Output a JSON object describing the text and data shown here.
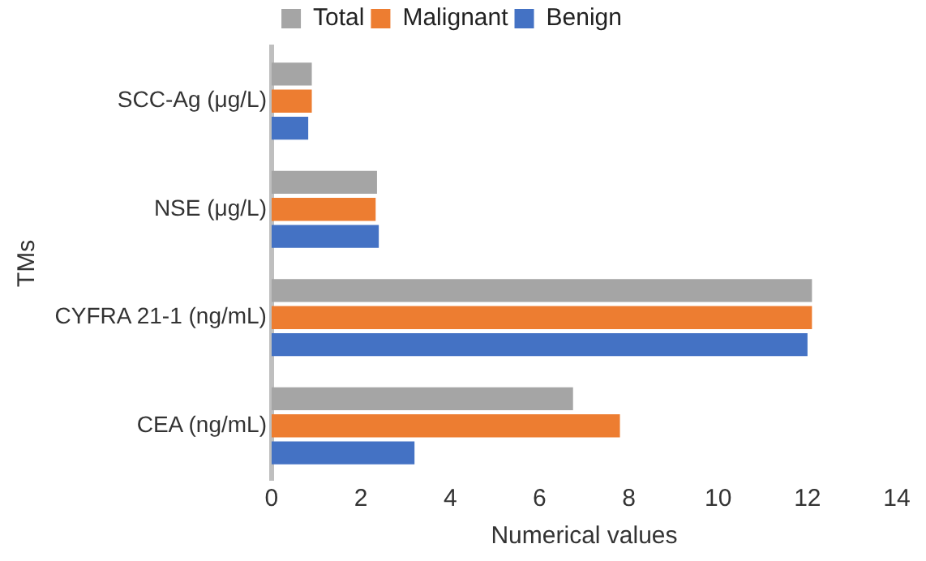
{
  "chart_data": {
    "type": "bar",
    "orientation": "horizontal",
    "xlabel": "Numerical values",
    "ylabel": "TMs",
    "categories": [
      "SCC-Ag (μg/L)",
      "NSE (μg/L)",
      "CYFRA 21-1 (ng/mL)",
      "CEA (ng/mL)"
    ],
    "series": [
      {
        "name": "Total",
        "color": "#a5a5a5",
        "values": [
          0.9,
          2.36,
          12.1,
          6.75
        ]
      },
      {
        "name": "Malignant",
        "color": "#ed7d31",
        "values": [
          0.9,
          2.33,
          12.1,
          7.8
        ]
      },
      {
        "name": "Benign",
        "color": "#4472c4",
        "values": [
          0.82,
          2.4,
          12.0,
          3.2
        ]
      }
    ],
    "xlim": [
      0,
      14
    ],
    "xticks": [
      0,
      2,
      4,
      6,
      8,
      10,
      12,
      14
    ],
    "grid": false,
    "legend": "top"
  }
}
